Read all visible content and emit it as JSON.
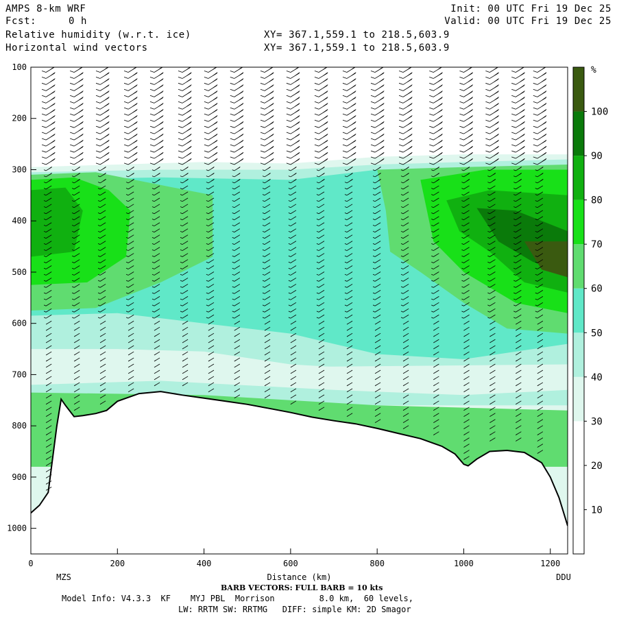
{
  "header": {
    "title": "AMPS 8-km WRF",
    "fcst_label": "Fcst:",
    "fcst_value": "0 h",
    "field1": "Relative humidity (w.r.t. ice)",
    "field2": "Horizontal wind vectors",
    "init": "Init: 00 UTC Fri 19 Dec 25",
    "valid": "Valid: 00 UTC Fri 19 Dec 25",
    "xy1": "XY= 367.1,559.1 to 218.5,603.9",
    "xy2": "XY= 367.1,559.1 to 218.5,603.9"
  },
  "footer": {
    "barb_note": "BARB VECTORS: FULL BARB = 10 kts",
    "model_info": "Model Info: V4.3.3  KF    MYJ PBL  Morrison         8.0 km,  60 levels,",
    "physics": "LW: RRTM SW: RRTMG   DIFF: simple KM: 2D Smagor"
  },
  "colors": {
    "lev10": "#ffffff",
    "lev20": "#ffffff",
    "lev30": "#dff7ee",
    "lev40": "#b0f0de",
    "lev50": "#60e8c8",
    "lev60": "#60dc70",
    "lev70": "#18e018",
    "lev80": "#10b010",
    "lev90": "#0a7a0a",
    "lev100": "#3a5a10",
    "terrain": "#ffffff",
    "terrain_line": "#000000"
  },
  "chart_data": {
    "type": "heatmap",
    "title": "Relative humidity (w.r.t. ice)",
    "xlabel": "Distance (km)",
    "ylabel": "",
    "xlim": [
      0,
      1240
    ],
    "ylim": [
      1050,
      100
    ],
    "x_ticks": [
      0,
      200,
      400,
      600,
      800,
      1000,
      1200
    ],
    "y_ticks": [
      100,
      200,
      300,
      400,
      500,
      600,
      700,
      800,
      900,
      1000
    ],
    "endpoints": {
      "left": "MZS",
      "right": "DDU"
    },
    "colorbar": {
      "unit": "%",
      "levels": [
        10,
        20,
        30,
        40,
        50,
        60,
        70,
        80,
        90,
        100
      ]
    },
    "terrain_profile": {
      "x": [
        0,
        20,
        40,
        60,
        70,
        80,
        100,
        120,
        150,
        175,
        200,
        250,
        300,
        350,
        400,
        450,
        500,
        550,
        600,
        650,
        700,
        750,
        800,
        850,
        900,
        950,
        980,
        1000,
        1010,
        1030,
        1060,
        1100,
        1140,
        1180,
        1200,
        1220,
        1240
      ],
      "pressure": [
        970,
        955,
        930,
        800,
        748,
        760,
        782,
        780,
        776,
        770,
        752,
        737,
        733,
        740,
        746,
        752,
        758,
        766,
        774,
        783,
        790,
        796,
        805,
        815,
        825,
        840,
        855,
        875,
        878,
        865,
        850,
        848,
        852,
        872,
        900,
        940,
        995
      ]
    },
    "barb_columns_x": [
      35,
      100,
      160,
      225,
      285,
      350,
      410,
      470,
      540,
      600,
      665,
      730,
      795,
      860,
      930,
      1000,
      1060,
      1120,
      1170
    ]
  }
}
